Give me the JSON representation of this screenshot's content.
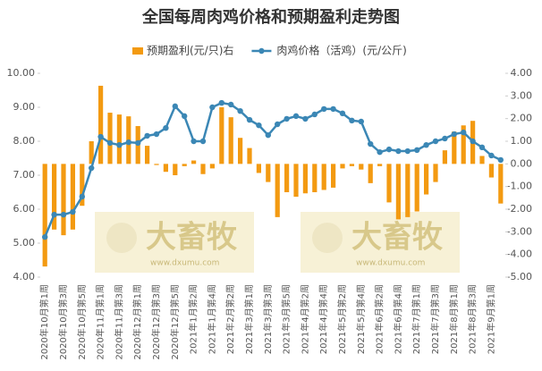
{
  "chart_data": {
    "type": "bar-line",
    "title": "全国每周肉鸡价格和预期盈利走势图",
    "watermark": {
      "text": "大畜牧",
      "url": "www.dxumu.com"
    },
    "categories": [
      "2020年10月第1周",
      null,
      "2020年10月第3周",
      null,
      "2020年10月第5周",
      null,
      "2020年11月第1周",
      null,
      "2020年11月第3周",
      null,
      "2020年12月第1周",
      null,
      "2020年12月第3周",
      null,
      "2020年12月第5周",
      null,
      "2021年1月第2周",
      null,
      "2021年1月第4周",
      null,
      "2021年2月第2周",
      null,
      "2021年3月第1周",
      null,
      "2021年3月第3周",
      null,
      "2021年3月第5周",
      null,
      "2021年4月第2周",
      null,
      "2021年4月第4周",
      null,
      "2021年5月第2周",
      null,
      "2021年5月第4周",
      null,
      "2021年6月第2周",
      null,
      "2021年6月第4周",
      null,
      "2021年7月第1周",
      null,
      "2021年7月第3周",
      null,
      "2021年8月第1周",
      null,
      "2021年8月第3周",
      null,
      "2021年9月第1周",
      null
    ],
    "series": [
      {
        "name": "预期盈利(元/只)右",
        "type": "bar",
        "axis": "y2",
        "color": "#f39a11",
        "values": [
          -4.53,
          -2.9,
          -3.15,
          -2.9,
          -1.85,
          1.0,
          3.45,
          2.26,
          2.18,
          2.1,
          1.67,
          0.8,
          -0.05,
          -0.35,
          -0.5,
          -0.1,
          0.15,
          -0.45,
          -0.2,
          2.5,
          2.06,
          1.15,
          0.7,
          -0.4,
          -0.8,
          -2.35,
          -1.25,
          -1.45,
          -1.3,
          -1.25,
          -1.15,
          -1.05,
          -0.2,
          -0.1,
          -0.25,
          -0.85,
          -0.1,
          -1.7,
          -2.45,
          -2.35,
          -2.1,
          -1.35,
          -0.8,
          0.6,
          1.43,
          1.7,
          1.9,
          0.35,
          -0.6,
          -1.75
        ]
      },
      {
        "name": "肉鸡价格（活鸡）(元/公斤)",
        "type": "line",
        "axis": "y",
        "color": "#3b87b5",
        "values": [
          5.18,
          5.84,
          5.84,
          5.92,
          6.37,
          7.21,
          8.13,
          7.95,
          7.89,
          7.97,
          7.95,
          8.16,
          8.21,
          8.39,
          9.03,
          8.74,
          8.0,
          8.0,
          9.0,
          9.13,
          9.08,
          8.89,
          8.63,
          8.47,
          8.18,
          8.5,
          8.66,
          8.74,
          8.66,
          8.79,
          8.95,
          8.95,
          8.82,
          8.61,
          8.58,
          7.92,
          7.68,
          7.76,
          7.71,
          7.71,
          7.74,
          7.89,
          8.0,
          8.08,
          8.21,
          8.26,
          8.0,
          7.82,
          7.58,
          7.45
        ]
      }
    ],
    "ylim": [
      4,
      10
    ],
    "yticks": [
      {
        "value": 4,
        "label": "4.00"
      },
      {
        "value": 5,
        "label": "5.00"
      },
      {
        "value": 6,
        "label": "6.00"
      },
      {
        "value": 7,
        "label": "7.00"
      },
      {
        "value": 8,
        "label": "8.00"
      },
      {
        "value": 9,
        "label": "9.00"
      },
      {
        "value": 10,
        "label": "10.00"
      }
    ],
    "y2lim": [
      -5,
      4
    ],
    "y2ticks": [
      {
        "value": -5,
        "label": "-5.00"
      },
      {
        "value": -4,
        "label": "-4.00"
      },
      {
        "value": -3,
        "label": "-3.00"
      },
      {
        "value": -2,
        "label": "-2.00"
      },
      {
        "value": -1,
        "label": "-1.00"
      },
      {
        "value": 0,
        "label": "0.00"
      },
      {
        "value": 1,
        "label": "1.00"
      },
      {
        "value": 2,
        "label": "2.00"
      },
      {
        "value": 3,
        "label": "3.00"
      },
      {
        "value": 4,
        "label": "4.00"
      }
    ],
    "grid": false
  }
}
